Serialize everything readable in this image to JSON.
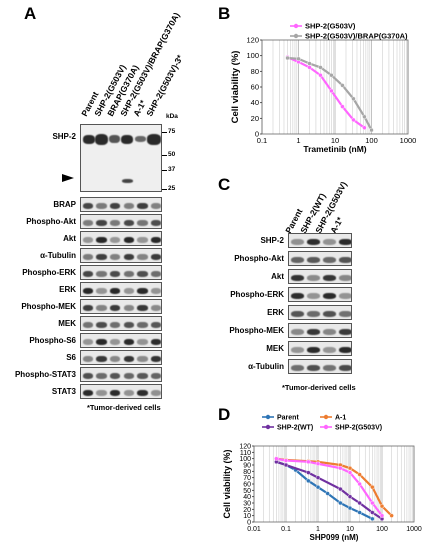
{
  "panels": {
    "A": "A",
    "B": "B",
    "C": "C",
    "D": "D"
  },
  "panelA": {
    "lanes": [
      "Parent",
      "SHP-2(G503V)",
      "BRAP(G370A)",
      "SHP-2(G503V)/BRAP(G370A)",
      "A-1*",
      "SHP-2(G503V)-3*"
    ],
    "kda_label": "kDa",
    "markers": [
      "75",
      "50",
      "37",
      "25"
    ],
    "shp2_label": "SHP-2",
    "rows": [
      "BRAP",
      "Phospho-Akt",
      "Akt",
      "α-Tubulin",
      "Phospho-ERK",
      "ERK",
      "Phospho-MEK",
      "MEK",
      "Phospho-S6",
      "S6",
      "Phospho-STAT3",
      "STAT3"
    ],
    "footnote": "*Tumor-derived cells"
  },
  "panelC": {
    "lanes": [
      "Parent",
      "SHP-2(WT)",
      "SHP-2(G503V)",
      "A-1*"
    ],
    "rows": [
      "SHP-2",
      "Phospho-Akt",
      "Akt",
      "Phospho-ERK",
      "ERK",
      "Phospho-MEK",
      "MEK",
      "α-Tubulin"
    ],
    "footnote": "*Tumor-derived cells"
  },
  "chart_data": [
    {
      "type": "line",
      "panel": "B",
      "xlabel": "Trametinib (nM)",
      "ylabel": "Cell viability (%)",
      "xscale": "log",
      "xlim": [
        0.1,
        1000
      ],
      "ylim": [
        0,
        120
      ],
      "xticks": [
        "0.1",
        "1",
        "10",
        "100",
        "1000"
      ],
      "yticks": [
        "0",
        "20",
        "40",
        "60",
        "80",
        "100",
        "120"
      ],
      "legend_position": "top-right",
      "series": [
        {
          "name": "SHP-2(G503V)",
          "color": "#ff66ff",
          "x": [
            0.5,
            1,
            2,
            4,
            8,
            16,
            32,
            64
          ],
          "y": [
            98,
            92,
            85,
            75,
            55,
            35,
            18,
            8
          ]
        },
        {
          "name": "SHP-2(G503V)/BRAP(G370A)",
          "color": "#a6a6a6",
          "x": [
            0.5,
            1,
            2,
            4,
            8,
            16,
            32,
            64,
            100
          ],
          "y": [
            97,
            96,
            90,
            85,
            75,
            62,
            45,
            22,
            5
          ]
        }
      ]
    },
    {
      "type": "line",
      "panel": "D",
      "xlabel": "SHP099 (nM)",
      "ylabel": "Cell viability (%)",
      "xscale": "log",
      "xlim": [
        0.01,
        1000
      ],
      "ylim": [
        0,
        120
      ],
      "xticks": [
        "0.01",
        "0.1",
        "1",
        "10",
        "100",
        "1000"
      ],
      "yticks": [
        "0",
        "10",
        "20",
        "30",
        "40",
        "50",
        "60",
        "70",
        "80",
        "90",
        "100",
        "110",
        "120"
      ],
      "legend_position": "top",
      "series": [
        {
          "name": "Parent",
          "color": "#2e75b6",
          "x": [
            0.05,
            0.1,
            0.2,
            0.5,
            1,
            2,
            5,
            10,
            20,
            50
          ],
          "y": [
            95,
            90,
            82,
            65,
            55,
            45,
            30,
            22,
            15,
            5
          ]
        },
        {
          "name": "A-1",
          "color": "#ed7d31",
          "x": [
            0.05,
            0.1,
            0.5,
            1,
            5,
            10,
            20,
            50,
            100,
            200
          ],
          "y": [
            100,
            98,
            96,
            95,
            90,
            85,
            75,
            55,
            25,
            10
          ]
        },
        {
          "name": "SHP-2(WT)",
          "color": "#7030a0",
          "x": [
            0.05,
            0.1,
            0.5,
            1,
            5,
            10,
            20,
            50,
            100
          ],
          "y": [
            95,
            90,
            78,
            70,
            52,
            40,
            30,
            15,
            5
          ]
        },
        {
          "name": "SHP-2(G503V)",
          "color": "#ff66ff",
          "x": [
            0.05,
            0.1,
            0.5,
            1,
            5,
            10,
            20,
            50,
            100
          ],
          "y": [
            100,
            97,
            95,
            92,
            85,
            78,
            60,
            30,
            10
          ]
        }
      ]
    }
  ]
}
